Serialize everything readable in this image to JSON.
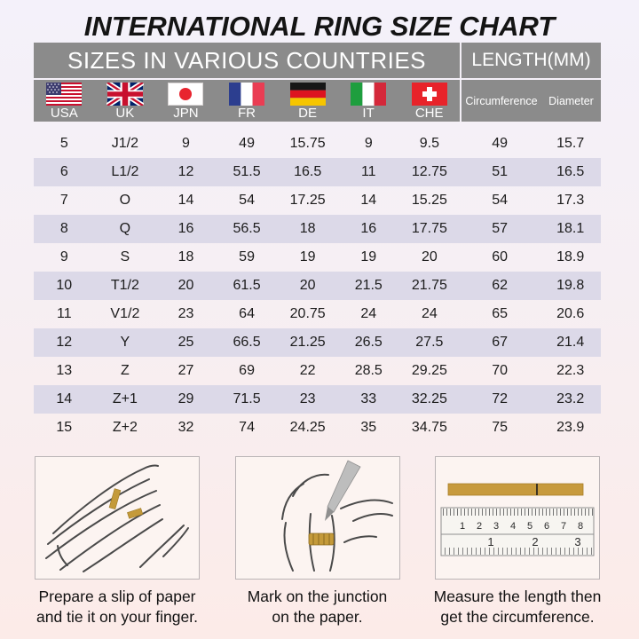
{
  "title": "INTERNATIONAL RING SIZE CHART",
  "table": {
    "group_headers": {
      "countries": "SIZES IN VARIOUS COUNTRIES",
      "length": "LENGTH(MM)"
    },
    "columns": [
      {
        "code": "USA",
        "icon": "usa-flag-icon"
      },
      {
        "code": "UK",
        "icon": "uk-flag-icon"
      },
      {
        "code": "JPN",
        "icon": "japan-flag-icon"
      },
      {
        "code": "FR",
        "icon": "france-flag-icon"
      },
      {
        "code": "DE",
        "icon": "germany-flag-icon"
      },
      {
        "code": "IT",
        "icon": "italy-flag-icon"
      },
      {
        "code": "CHE",
        "icon": "switzerland-flag-icon"
      }
    ],
    "length_columns": [
      "Circumference",
      "Diameter"
    ],
    "rows": [
      [
        "5",
        "J1/2",
        "9",
        "49",
        "15.75",
        "9",
        "9.5",
        "49",
        "15.7"
      ],
      [
        "6",
        "L1/2",
        "12",
        "51.5",
        "16.5",
        "11",
        "12.75",
        "51",
        "16.5"
      ],
      [
        "7",
        "O",
        "14",
        "54",
        "17.25",
        "14",
        "15.25",
        "54",
        "17.3"
      ],
      [
        "8",
        "Q",
        "16",
        "56.5",
        "18",
        "16",
        "17.75",
        "57",
        "18.1"
      ],
      [
        "9",
        "S",
        "18",
        "59",
        "19",
        "19",
        "20",
        "60",
        "18.9"
      ],
      [
        "10",
        "T1/2",
        "20",
        "61.5",
        "20",
        "21.5",
        "21.75",
        "62",
        "19.8"
      ],
      [
        "11",
        "V1/2",
        "23",
        "64",
        "20.75",
        "24",
        "24",
        "65",
        "20.6"
      ],
      [
        "12",
        "Y",
        "25",
        "66.5",
        "21.25",
        "26.5",
        "27.5",
        "67",
        "21.4"
      ],
      [
        "13",
        "Z",
        "27",
        "69",
        "22",
        "28.5",
        "29.25",
        "70",
        "22.3"
      ],
      [
        "14",
        "Z+1",
        "29",
        "71.5",
        "23",
        "33",
        "32.25",
        "72",
        "23.2"
      ],
      [
        "15",
        "Z+2",
        "32",
        "74",
        "24.25",
        "35",
        "34.75",
        "75",
        "23.9"
      ]
    ]
  },
  "instructions": [
    {
      "illustration": "hand-with-paper-slip-illustration",
      "line1": "Prepare a slip of paper",
      "line2": "and tie it on your finger."
    },
    {
      "illustration": "mark-junction-illustration",
      "line1": "Mark on the junction",
      "line2": "on the paper."
    },
    {
      "illustration": "ruler-measure-illustration",
      "line1": "Measure the length then",
      "line2": "get the circumference."
    }
  ],
  "colors": {
    "header_bg": "#8b8b8b",
    "header_text": "#ffffff",
    "row_stripe": "#dcd9e8",
    "gold_accent": "#c49a3a",
    "page_bg_top": "#f4f1fa",
    "page_bg_bottom": "#fcebe8"
  }
}
